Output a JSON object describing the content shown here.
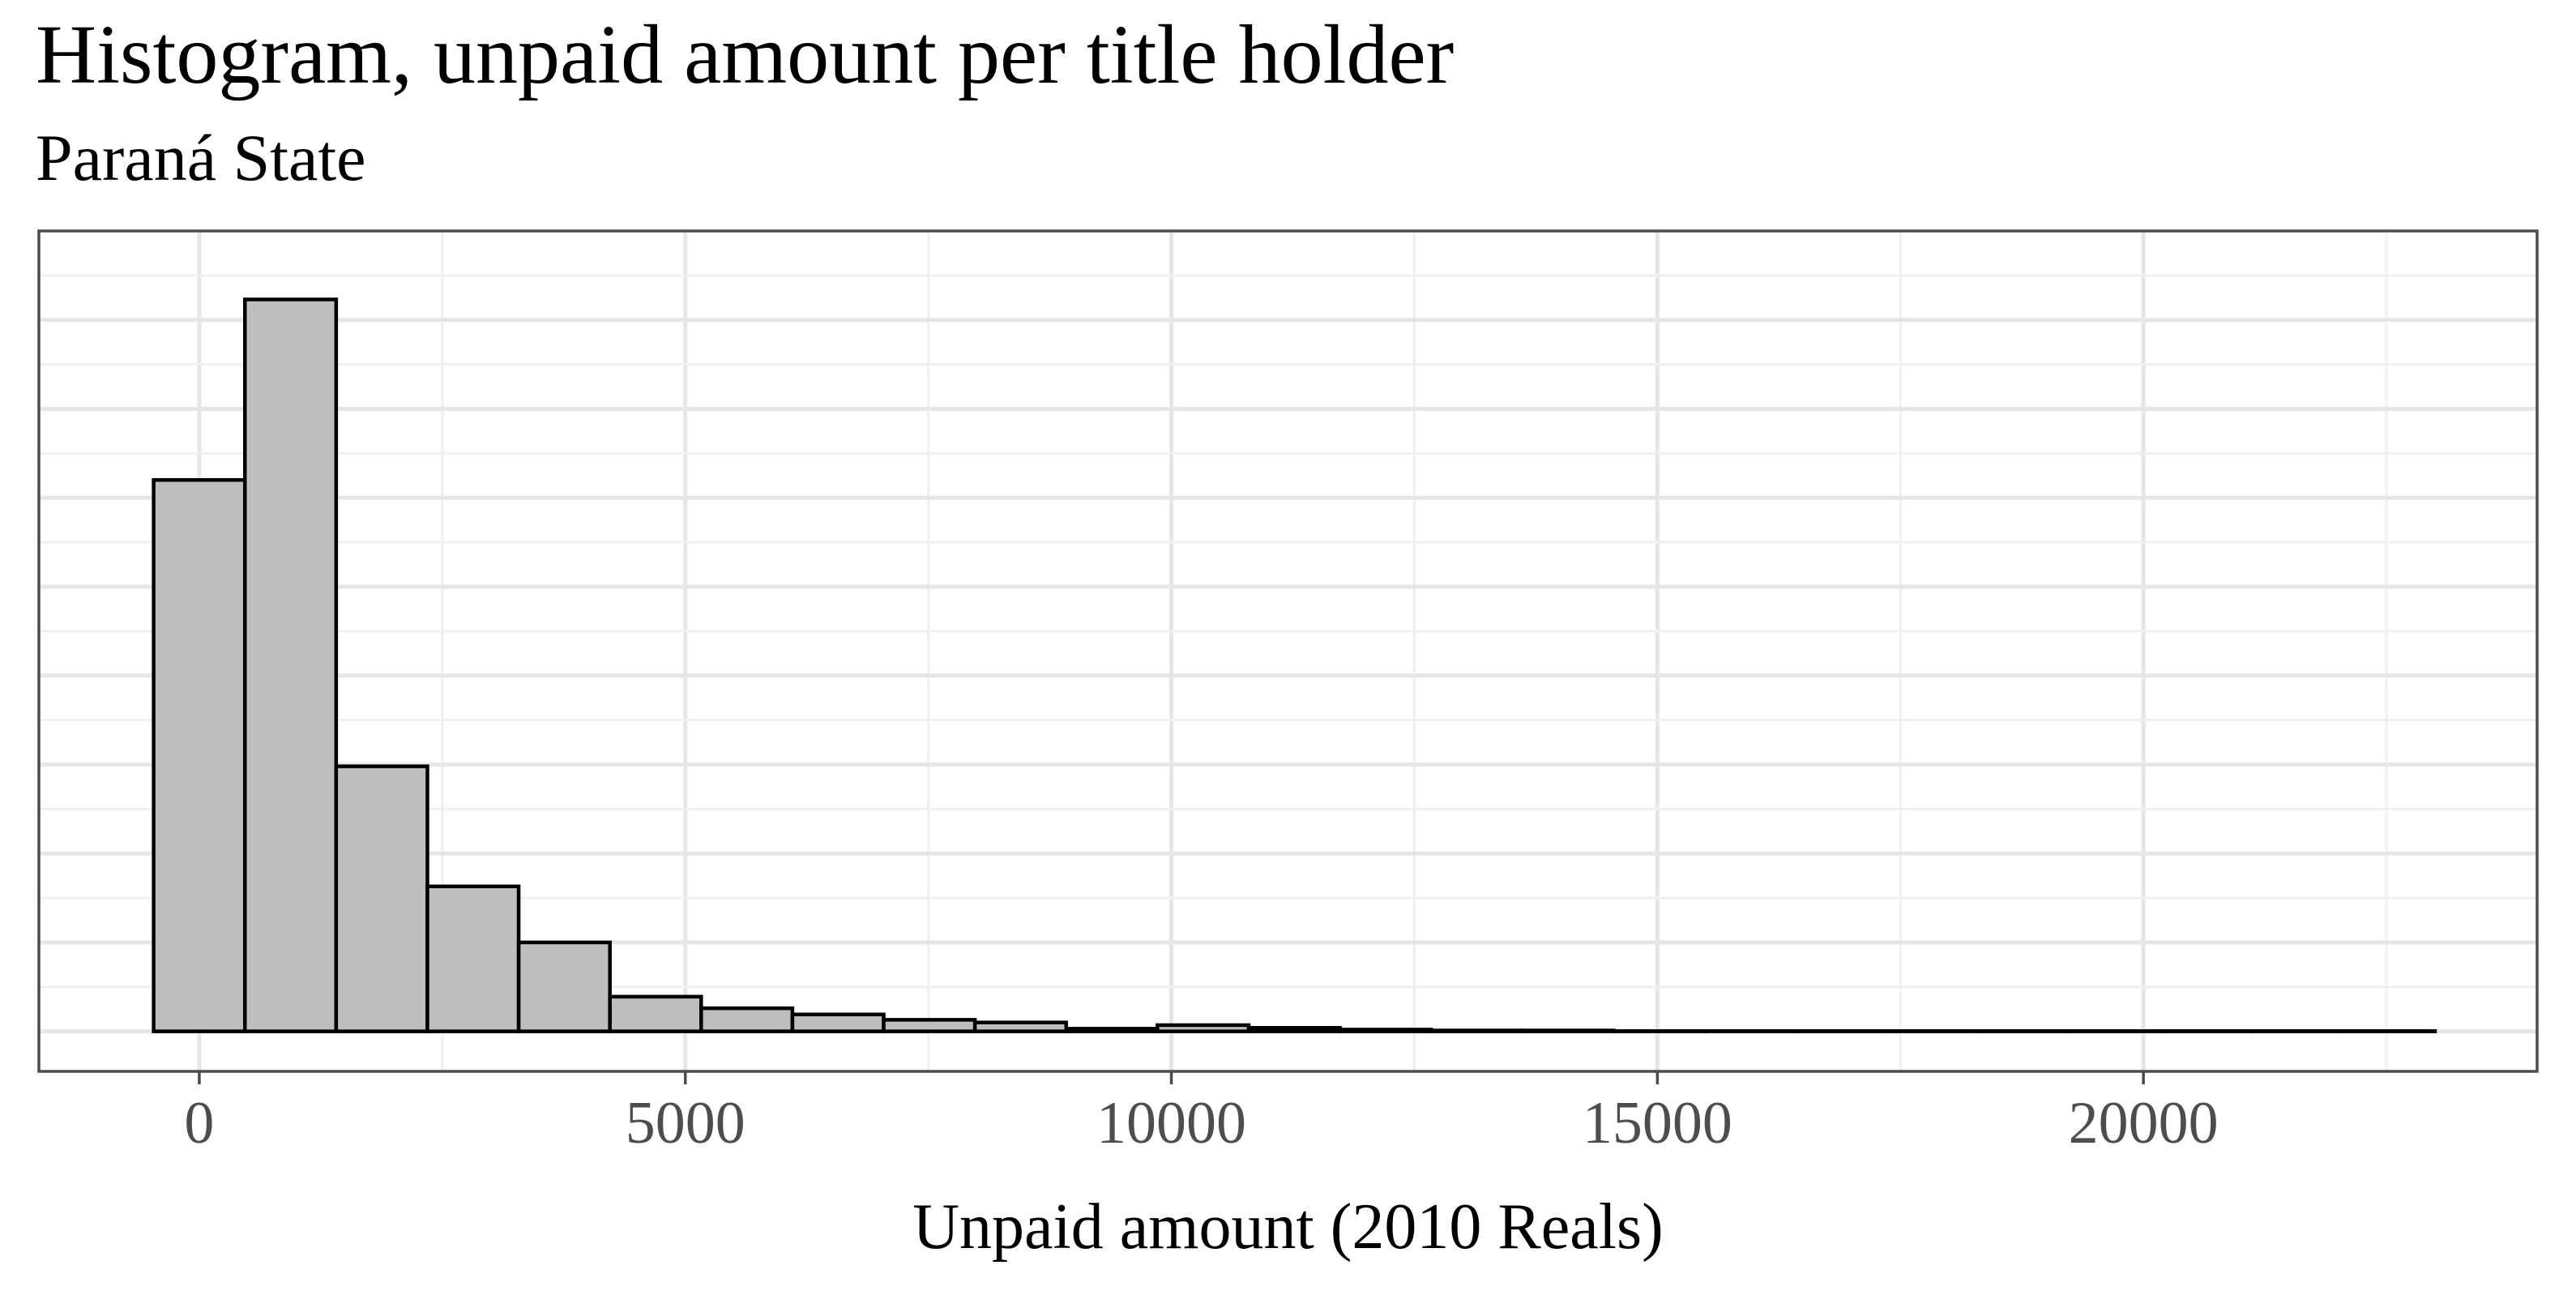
{
  "chart_data": {
    "type": "bar",
    "title": "Histogram, unpaid amount per title holder",
    "subtitle": "Paraná State",
    "xlabel": "Unpaid amount (2010 Reals)",
    "ylabel": "",
    "xlim": [
      -1650,
      24050
    ],
    "ylim": [
      -0.45,
      9.0
    ],
    "x_ticks": [
      0,
      5000,
      10000,
      15000,
      20000
    ],
    "x_tick_labels": [
      "0",
      "5000",
      "10000",
      "15000",
      "20000"
    ],
    "y_ticks_hidden": [
      0,
      1,
      2,
      3,
      4,
      5,
      6,
      7,
      8
    ],
    "grid": true,
    "legend": "none",
    "fill_color": "#bebebe",
    "edge_color": "#000000",
    "bin_width": 938.75,
    "bins": [
      {
        "start": -469.4,
        "end": 469.4,
        "value": 6.2
      },
      {
        "start": 469.4,
        "end": 1408.1,
        "value": 8.23
      },
      {
        "start": 1408.1,
        "end": 2346.9,
        "value": 2.98
      },
      {
        "start": 2346.9,
        "end": 3285.6,
        "value": 1.63
      },
      {
        "start": 3285.6,
        "end": 4224.4,
        "value": 1.0
      },
      {
        "start": 4224.4,
        "end": 5163.1,
        "value": 0.39
      },
      {
        "start": 5163.1,
        "end": 6101.9,
        "value": 0.26
      },
      {
        "start": 6101.9,
        "end": 7040.6,
        "value": 0.19
      },
      {
        "start": 7040.6,
        "end": 7979.4,
        "value": 0.13
      },
      {
        "start": 7979.4,
        "end": 8918.1,
        "value": 0.1
      },
      {
        "start": 8918.1,
        "end": 9856.9,
        "value": 0.03
      },
      {
        "start": 9856.9,
        "end": 10795.6,
        "value": 0.07
      },
      {
        "start": 10795.6,
        "end": 11734.4,
        "value": 0.04
      },
      {
        "start": 11734.4,
        "end": 12673.1,
        "value": 0.02
      },
      {
        "start": 12673.1,
        "end": 13611.9,
        "value": 0.01
      },
      {
        "start": 13611.9,
        "end": 14550.6,
        "value": 0.01
      },
      {
        "start": 14550.6,
        "end": 15489.4,
        "value": 0.003
      },
      {
        "start": 15489.4,
        "end": 16428.1,
        "value": 0.003
      },
      {
        "start": 16428.1,
        "end": 17366.9,
        "value": 0.003
      },
      {
        "start": 17366.9,
        "end": 18305.6,
        "value": 0.003
      },
      {
        "start": 18305.6,
        "end": 19244.4,
        "value": 0.003
      },
      {
        "start": 19244.4,
        "end": 20183.1,
        "value": 0.003
      },
      {
        "start": 20183.1,
        "end": 21121.9,
        "value": 0.003
      },
      {
        "start": 21121.9,
        "end": 22060.6,
        "value": 0.003
      },
      {
        "start": 22060.6,
        "end": 22999.4,
        "value": 0.003
      }
    ]
  }
}
